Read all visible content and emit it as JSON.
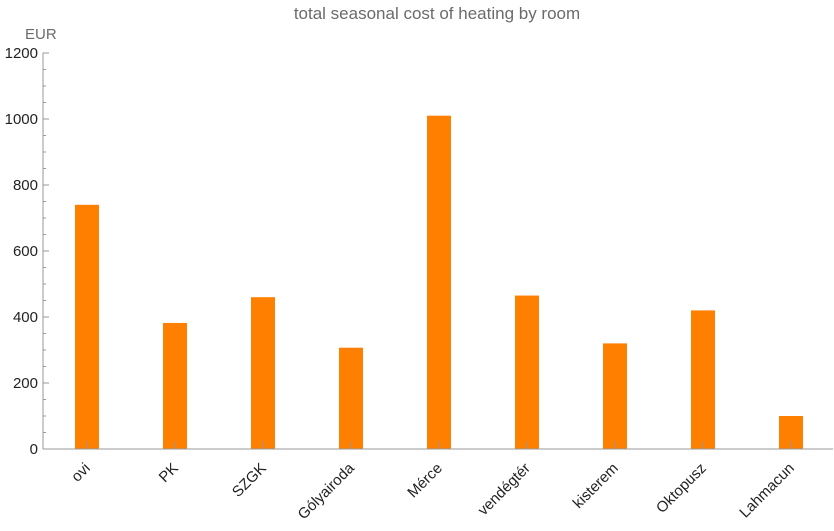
{
  "chart_data": {
    "type": "bar",
    "title": "total seasonal cost of heating by room",
    "xlabel": "",
    "ylabel": "EUR",
    "categories": [
      "ovi",
      "PK",
      "SZGK",
      "Gólyairoda",
      "Mérce",
      "vendégtér",
      "kisterem",
      "Oktopusz",
      "Lahmacun"
    ],
    "values": [
      740,
      382,
      460,
      307,
      1010,
      465,
      320,
      420,
      100
    ],
    "ylim": [
      0,
      1200
    ],
    "yticks": [
      0,
      200,
      400,
      600,
      800,
      1000,
      1200
    ],
    "grid": false,
    "bar_color": "#ff7f00",
    "axis_color": "#999999"
  }
}
